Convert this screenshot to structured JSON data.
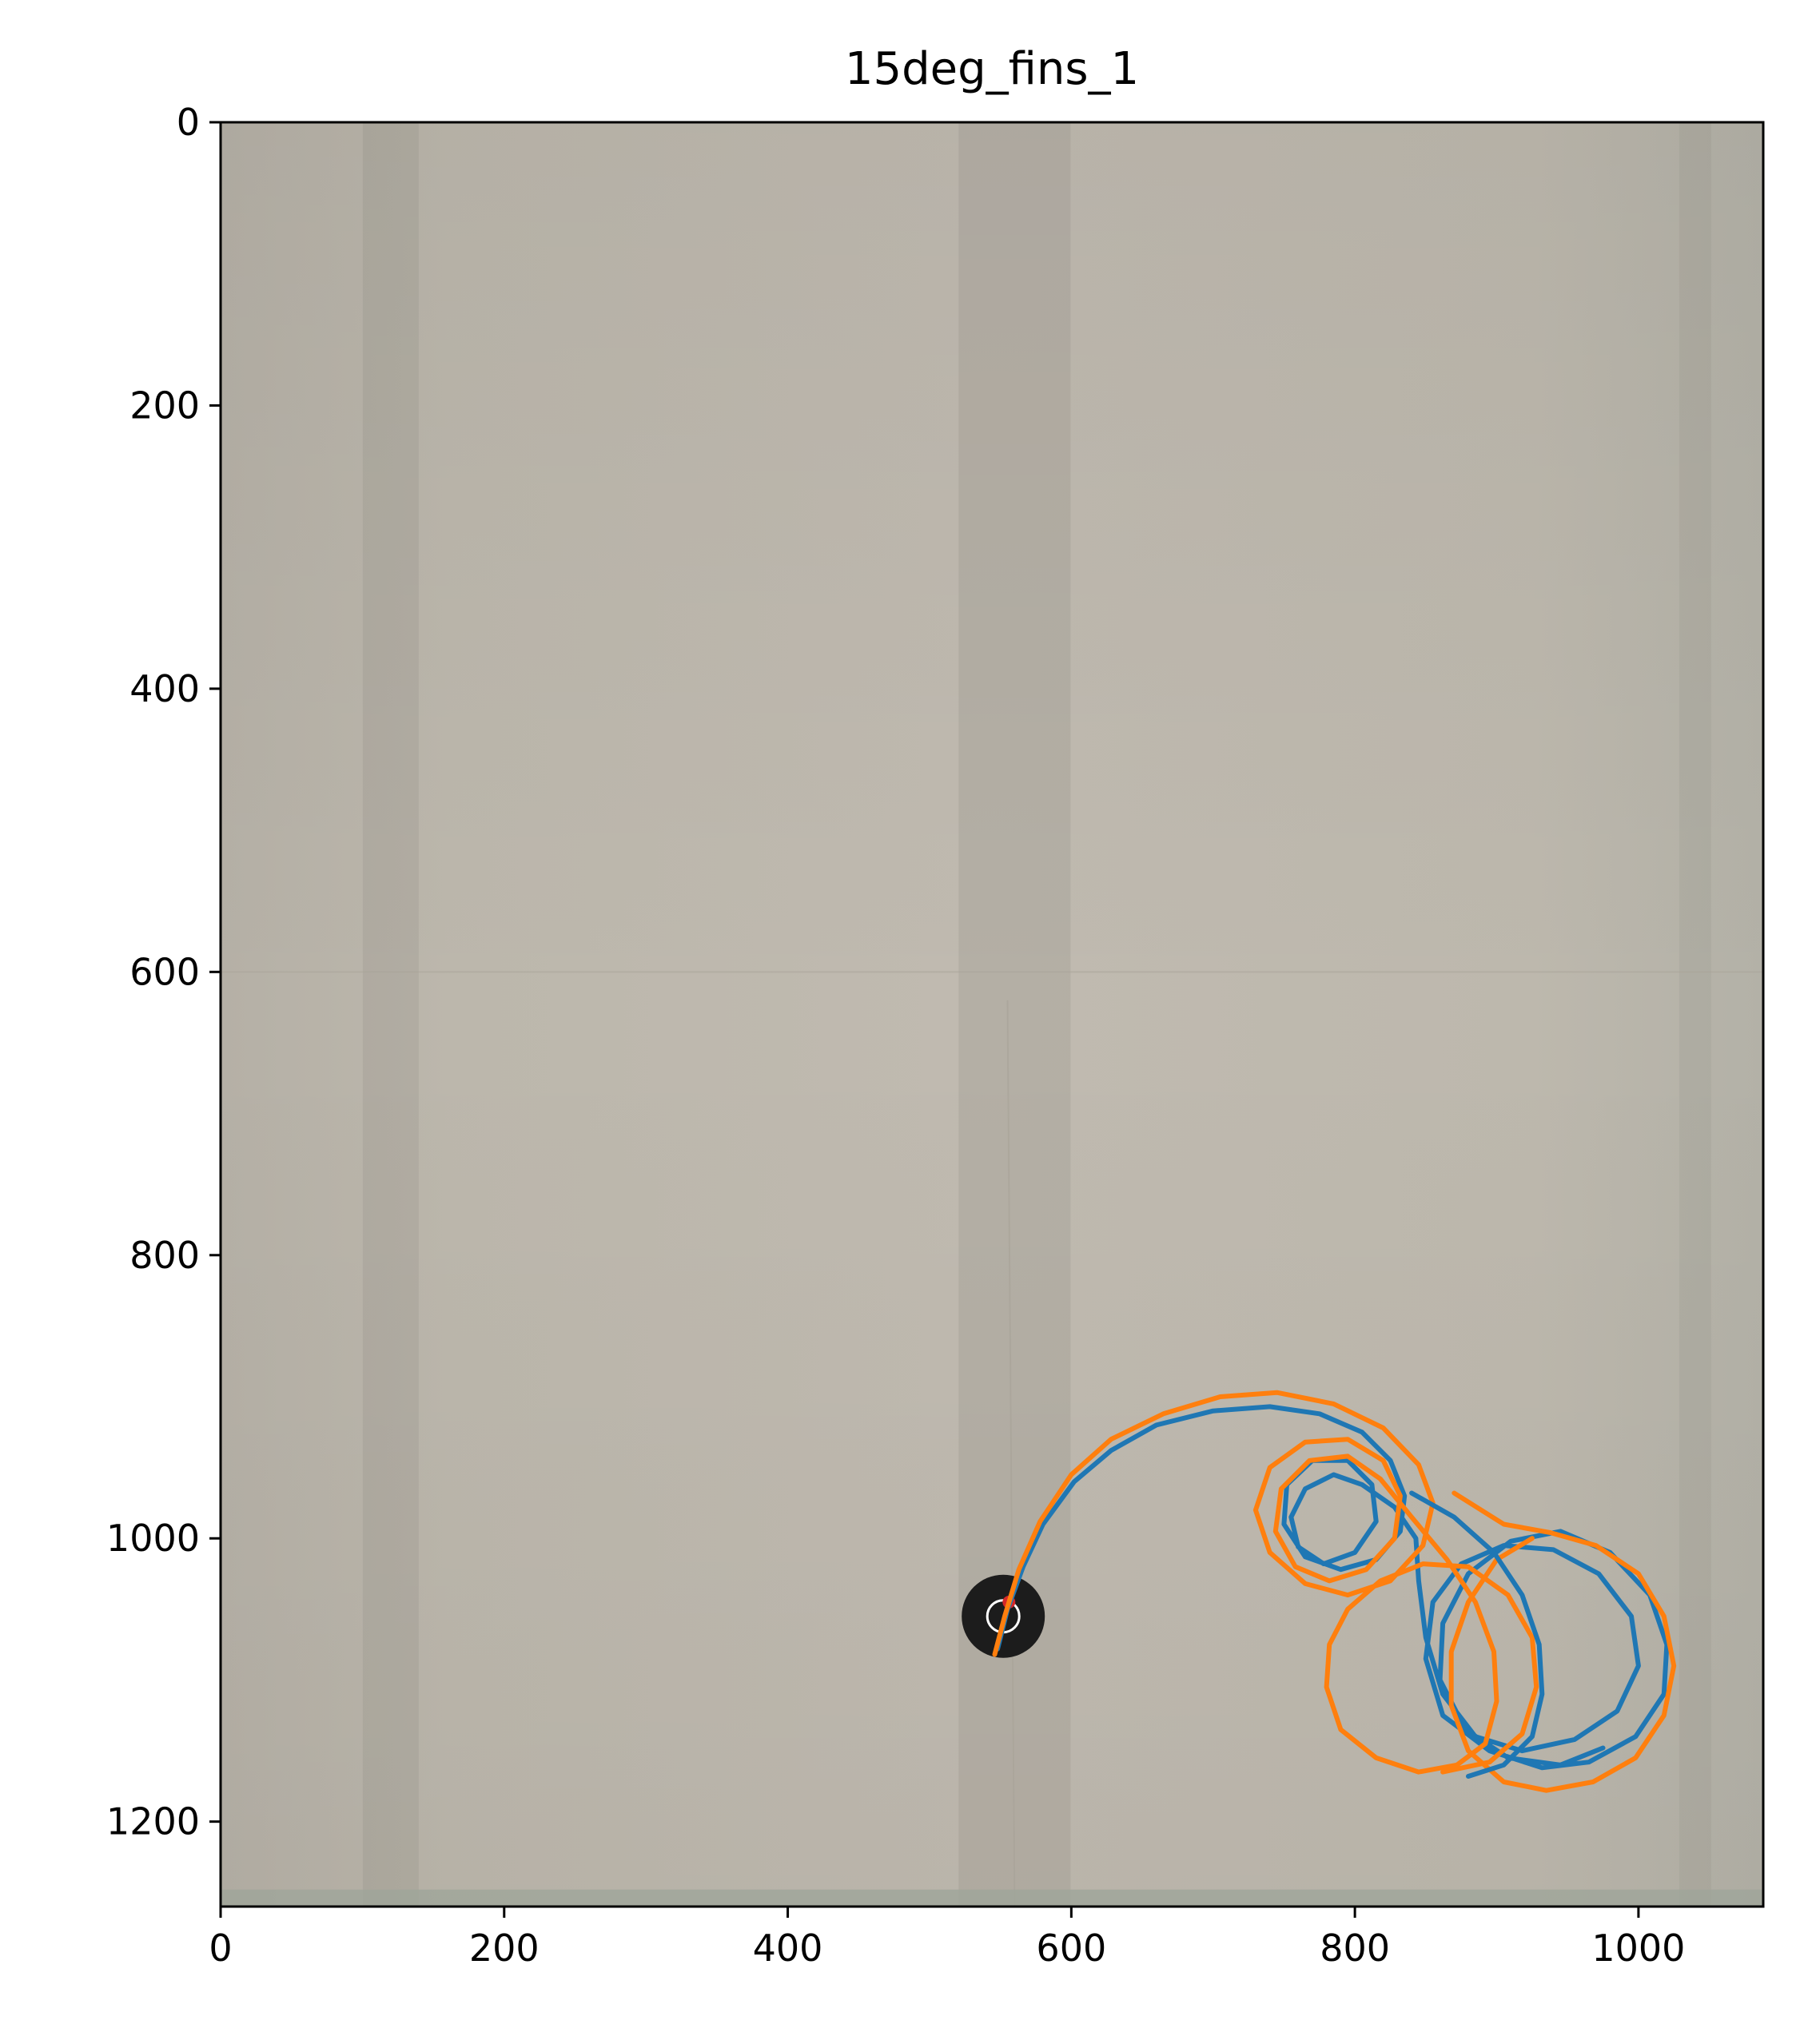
{
  "chart_data": {
    "type": "line",
    "title": "15deg_fins_1",
    "xlabel": "",
    "ylabel": "",
    "xlim": [
      0,
      1088
    ],
    "ylim": [
      1260,
      0
    ],
    "y_inverted": true,
    "grid": false,
    "xticks": [
      0,
      200,
      400,
      600,
      800,
      1000
    ],
    "yticks": [
      0,
      200,
      400,
      600,
      800,
      1000,
      1200
    ],
    "background": "photo of tank floor",
    "colors": {
      "series1": "#1f77b4",
      "series2": "#ff7f0e",
      "background": "#bdb7ab"
    },
    "series": [
      {
        "color": "#1f77b4",
        "points": [
          [
            548,
            1078
          ],
          [
            555,
            1050
          ],
          [
            566,
            1020
          ],
          [
            580,
            990
          ],
          [
            602,
            960
          ],
          [
            628,
            938
          ],
          [
            660,
            920
          ],
          [
            700,
            910
          ],
          [
            740,
            907
          ],
          [
            775,
            912
          ],
          [
            805,
            925
          ],
          [
            825,
            945
          ],
          [
            835,
            970
          ],
          [
            832,
            995
          ],
          [
            815,
            1015
          ],
          [
            790,
            1022
          ],
          [
            765,
            1013
          ],
          [
            750,
            990
          ],
          [
            752,
            962
          ],
          [
            770,
            945
          ],
          [
            795,
            945
          ],
          [
            812,
            962
          ],
          [
            815,
            988
          ],
          [
            800,
            1010
          ],
          [
            778,
            1018
          ],
          [
            760,
            1006
          ],
          [
            755,
            985
          ],
          [
            765,
            965
          ],
          [
            785,
            955
          ],
          [
            805,
            962
          ],
          [
            828,
            978
          ],
          [
            843,
            1000
          ],
          [
            845,
            1030
          ],
          [
            850,
            1070
          ],
          [
            862,
            1110
          ],
          [
            885,
            1140
          ],
          [
            918,
            1150
          ],
          [
            955,
            1142
          ],
          [
            985,
            1122
          ],
          [
            1000,
            1090
          ],
          [
            995,
            1055
          ],
          [
            972,
            1025
          ],
          [
            940,
            1008
          ],
          [
            905,
            1005
          ],
          [
            875,
            1018
          ],
          [
            855,
            1045
          ],
          [
            850,
            1085
          ],
          [
            862,
            1125
          ],
          [
            895,
            1150
          ],
          [
            932,
            1162
          ],
          [
            965,
            1158
          ],
          [
            998,
            1140
          ],
          [
            1018,
            1110
          ],
          [
            1020,
            1075
          ],
          [
            1008,
            1040
          ],
          [
            980,
            1010
          ],
          [
            945,
            995
          ],
          [
            910,
            1002
          ],
          [
            880,
            1025
          ],
          [
            862,
            1060
          ],
          [
            860,
            1100
          ],
          [
            878,
            1135
          ],
          [
            908,
            1155
          ],
          [
            945,
            1160
          ],
          [
            975,
            1148
          ]
        ]
      },
      {
        "color": "#ff7f0e",
        "points": [
          [
            546,
            1082
          ],
          [
            553,
            1055
          ],
          [
            563,
            1022
          ],
          [
            578,
            988
          ],
          [
            600,
            955
          ],
          [
            628,
            930
          ],
          [
            665,
            912
          ],
          [
            705,
            900
          ],
          [
            745,
            897
          ],
          [
            785,
            905
          ],
          [
            820,
            922
          ],
          [
            845,
            948
          ],
          [
            855,
            975
          ],
          [
            848,
            1005
          ],
          [
            825,
            1030
          ],
          [
            795,
            1040
          ],
          [
            765,
            1032
          ],
          [
            740,
            1010
          ],
          [
            730,
            980
          ],
          [
            740,
            950
          ],
          [
            765,
            932
          ],
          [
            795,
            930
          ],
          [
            820,
            945
          ],
          [
            832,
            970
          ],
          [
            828,
            1000
          ],
          [
            808,
            1022
          ],
          [
            782,
            1030
          ],
          [
            758,
            1020
          ],
          [
            744,
            995
          ],
          [
            748,
            965
          ],
          [
            768,
            945
          ],
          [
            795,
            942
          ],
          [
            818,
            958
          ],
          [
            840,
            985
          ],
          [
            865,
            1015
          ],
          [
            885,
            1045
          ],
          [
            898,
            1080
          ],
          [
            900,
            1115
          ],
          [
            892,
            1145
          ],
          [
            872,
            1160
          ],
          [
            845,
            1165
          ],
          [
            815,
            1155
          ],
          [
            790,
            1135
          ],
          [
            780,
            1105
          ],
          [
            782,
            1075
          ],
          [
            795,
            1050
          ],
          [
            818,
            1030
          ],
          [
            848,
            1018
          ],
          [
            880,
            1020
          ],
          [
            908,
            1040
          ],
          [
            925,
            1070
          ],
          [
            928,
            1105
          ],
          [
            918,
            1138
          ],
          [
            895,
            1158
          ],
          [
            862,
            1165
          ]
        ]
      },
      {
        "color": "#ff7f0e",
        "points": [
          [
            870,
            968
          ],
          [
            905,
            990
          ],
          [
            938,
            996
          ],
          [
            970,
            1005
          ],
          [
            1000,
            1025
          ],
          [
            1018,
            1055
          ],
          [
            1025,
            1090
          ],
          [
            1018,
            1125
          ],
          [
            998,
            1155
          ],
          [
            968,
            1172
          ],
          [
            935,
            1178
          ],
          [
            905,
            1172
          ],
          [
            880,
            1150
          ],
          [
            868,
            1118
          ],
          [
            868,
            1080
          ],
          [
            880,
            1045
          ],
          [
            900,
            1015
          ],
          [
            925,
            1000
          ]
        ]
      },
      {
        "color": "#1f77b4",
        "points": [
          [
            840,
            968
          ],
          [
            870,
            985
          ],
          [
            898,
            1010
          ],
          [
            918,
            1040
          ],
          [
            930,
            1075
          ],
          [
            932,
            1110
          ],
          [
            925,
            1140
          ],
          [
            905,
            1160
          ],
          [
            880,
            1168
          ]
        ]
      }
    ]
  }
}
